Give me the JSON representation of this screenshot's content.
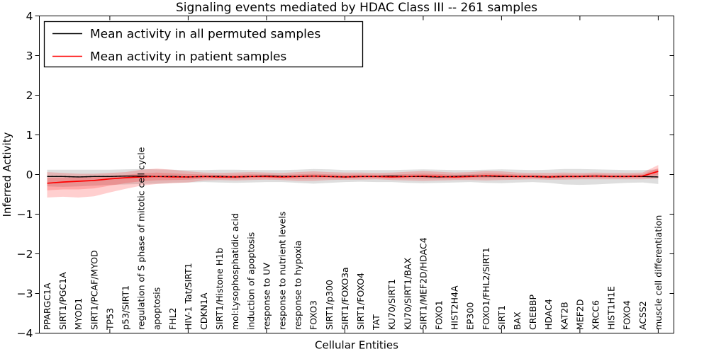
{
  "chart_data": {
    "type": "line",
    "title": "Signaling events mediated by HDAC Class III -- 261 samples",
    "xlabel": "Cellular Entities",
    "ylabel": "Inferred Activity",
    "ylim": [
      -4,
      4
    ],
    "yticks": [
      -4,
      -3,
      -2,
      -1,
      0,
      1,
      2,
      3,
      4
    ],
    "xticks": [
      5,
      10,
      15,
      20,
      25,
      30,
      35,
      40
    ],
    "grid": false,
    "legend_position": "upper left",
    "legend": [
      {
        "label": "Mean activity in all permuted samples",
        "color": "#000000"
      },
      {
        "label": "Mean activity in patient samples",
        "color": "#ff0000"
      }
    ],
    "categories": [
      "PPARGC1A",
      "SIRT1/PGC1A",
      "MYOD1",
      "SIRT1/PCAF/MYOD",
      "TP53",
      "p53/SIRT1",
      "regulation of S phase of mitotic cell cycle",
      "apoptosis",
      "FHL2",
      "HIV-1 Tat/SIRT1",
      "CDKN1A",
      "SIRT1/Histone H1b",
      "mol:Lysophosphatidic acid",
      "induction of apoptosis",
      "response to UV",
      "response to nutrient levels",
      "response to hypoxia",
      "FOXO3",
      "SIRT1/p300",
      "SIRT1/FOXO3a",
      "SIRT1/FOXO4",
      "TAT",
      "KU70/SIRT1",
      "KU70/SIRT1/BAX",
      "SIRT1/MEF2D/HDAC4",
      "FOXO1",
      "HIST2H4A",
      "EP300",
      "FOXO1/FHL2/SIRT1",
      "SIRT1",
      "BAX",
      "CREBBP",
      "HDAC4",
      "KAT2B",
      "MEF2D",
      "XRCC6",
      "HIST1H1E",
      "FOXO4",
      "ACSS2",
      "muscle cell differentiation"
    ],
    "series": [
      {
        "name": "Mean activity in all permuted samples",
        "color": "#000000",
        "values": [
          -0.05,
          -0.05,
          -0.06,
          -0.05,
          -0.05,
          -0.04,
          -0.04,
          -0.05,
          -0.05,
          -0.06,
          -0.05,
          -0.05,
          -0.06,
          -0.05,
          -0.04,
          -0.05,
          -0.05,
          -0.04,
          -0.05,
          -0.06,
          -0.05,
          -0.05,
          -0.04,
          -0.05,
          -0.05,
          -0.06,
          -0.05,
          -0.04,
          -0.04,
          -0.05,
          -0.05,
          -0.05,
          -0.06,
          -0.05,
          -0.05,
          -0.04,
          -0.05,
          -0.05,
          -0.05,
          -0.06
        ]
      },
      {
        "name": "Mean activity in patient samples",
        "color": "#ff0000",
        "values": [
          -0.22,
          -0.19,
          -0.17,
          -0.15,
          -0.11,
          -0.08,
          -0.06,
          -0.05,
          -0.06,
          -0.06,
          -0.05,
          -0.06,
          -0.06,
          -0.05,
          -0.05,
          -0.06,
          -0.05,
          -0.04,
          -0.05,
          -0.06,
          -0.05,
          -0.05,
          -0.06,
          -0.05,
          -0.04,
          -0.05,
          -0.06,
          -0.05,
          -0.03,
          -0.04,
          -0.05,
          -0.05,
          -0.06,
          -0.05,
          -0.05,
          -0.04,
          -0.05,
          -0.05,
          -0.04,
          0.08
        ]
      }
    ],
    "bands": [
      {
        "name": "permuted-samples-spread",
        "color": "rgba(0,0,0,0.13)",
        "upper": [
          0.12,
          0.12,
          0.12,
          0.12,
          0.12,
          0.13,
          0.14,
          0.13,
          0.12,
          0.11,
          0.11,
          0.12,
          0.12,
          0.11,
          0.11,
          0.11,
          0.12,
          0.14,
          0.13,
          0.11,
          0.11,
          0.11,
          0.11,
          0.12,
          0.13,
          0.12,
          0.11,
          0.11,
          0.12,
          0.13,
          0.12,
          0.11,
          0.12,
          0.14,
          0.14,
          0.13,
          0.12,
          0.11,
          0.11,
          0.13
        ],
        "lower": [
          -0.3,
          -0.31,
          -0.3,
          -0.28,
          -0.26,
          -0.25,
          -0.24,
          -0.23,
          -0.21,
          -0.2,
          -0.19,
          -0.2,
          -0.21,
          -0.2,
          -0.19,
          -0.19,
          -0.21,
          -0.23,
          -0.21,
          -0.19,
          -0.18,
          -0.19,
          -0.19,
          -0.21,
          -0.22,
          -0.21,
          -0.2,
          -0.19,
          -0.21,
          -0.22,
          -0.2,
          -0.19,
          -0.21,
          -0.25,
          -0.26,
          -0.25,
          -0.23,
          -0.21,
          -0.2,
          -0.24
        ]
      },
      {
        "name": "patient-samples-spread",
        "color": "rgba(255,0,0,0.19)",
        "upper": [
          0.06,
          0.04,
          0.02,
          0.02,
          0.04,
          0.06,
          0.12,
          0.15,
          0.12,
          0.08,
          0.05,
          0.04,
          0.05,
          0.06,
          0.05,
          0.04,
          0.06,
          0.08,
          0.06,
          0.05,
          0.05,
          0.04,
          0.05,
          0.07,
          0.09,
          0.07,
          0.05,
          0.06,
          0.09,
          0.08,
          0.05,
          0.04,
          0.04,
          0.05,
          0.04,
          0.05,
          0.04,
          0.04,
          0.05,
          0.24
        ],
        "lower": [
          -0.58,
          -0.56,
          -0.58,
          -0.55,
          -0.45,
          -0.36,
          -0.28,
          -0.24,
          -0.22,
          -0.2,
          -0.15,
          -0.14,
          -0.15,
          -0.14,
          -0.13,
          -0.14,
          -0.16,
          -0.16,
          -0.14,
          -0.13,
          -0.13,
          -0.12,
          -0.14,
          -0.15,
          -0.16,
          -0.15,
          -0.14,
          -0.14,
          -0.15,
          -0.14,
          -0.13,
          -0.12,
          -0.13,
          -0.13,
          -0.12,
          -0.12,
          -0.12,
          -0.12,
          -0.12,
          -0.1
        ]
      }
    ]
  }
}
